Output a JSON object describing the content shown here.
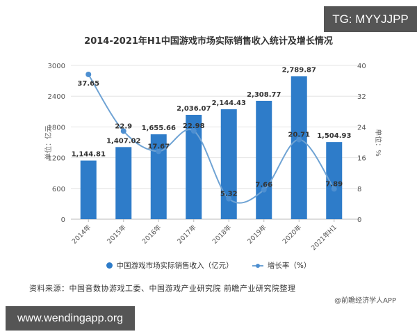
{
  "watermarks": {
    "top_right": "TG: MYYJJPP",
    "bottom_left": "www.wendingapp.org",
    "credit": "@前瞻经济学人APP"
  },
  "chart_data": {
    "type": "bar",
    "title": "2014-2021年H1中国游戏市场实际销售收入统计及增长情况",
    "categories": [
      "2014年",
      "2015年",
      "2016年",
      "2017年",
      "2018年",
      "2019年",
      "2020年",
      "2021年H1"
    ],
    "series": [
      {
        "name": "中国游戏市场实际销售收入（亿元）",
        "type": "bar",
        "axis": "left",
        "color": "#2e7cc9",
        "values": [
          1144.81,
          1407.02,
          1655.66,
          2036.07,
          2144.43,
          2308.77,
          2789.87,
          1504.93
        ],
        "labels": [
          "1,144.81",
          "1,407.02",
          "1,655.66",
          "2,036.07",
          "2,144.43",
          "2,308.77",
          "2,789.87",
          "1,504.93"
        ]
      },
      {
        "name": "增长率（%）",
        "type": "line",
        "axis": "right",
        "color": "#6fa3d4",
        "values": [
          37.65,
          22.9,
          17.67,
          22.98,
          5.32,
          7.66,
          20.71,
          7.89
        ],
        "labels": [
          "37.65",
          "22.9",
          "17.67",
          "22.98",
          "5.32",
          "7.66",
          "20.71",
          "7.89"
        ]
      }
    ],
    "ylabel": "单位：亿元",
    "y2label": "单位：%",
    "ylim": [
      0,
      3000
    ],
    "y2lim": [
      0,
      40
    ],
    "yticks": [
      "0",
      "600",
      "1200",
      "1800",
      "2400",
      "3000"
    ],
    "y2ticks": [
      "0",
      "8",
      "16",
      "24",
      "32",
      "40"
    ],
    "grid": true,
    "legend_position": "bottom"
  },
  "legend": {
    "bar_label": "中国游戏市场实际销售收入（亿元）",
    "line_label": "增长率（%）"
  },
  "source": "资料来源：中国音数协游戏工委、中国游戏产业研究院 前瞻产业研究院整理"
}
